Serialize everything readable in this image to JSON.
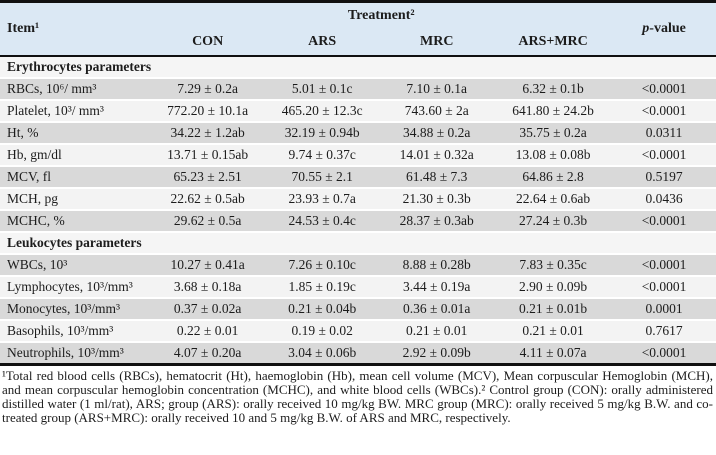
{
  "colors": {
    "header_bg": "#dbe8f4",
    "row_dark": "#d9d9d9",
    "row_light": "#f3f3f3",
    "section_bg": "#f5f5f5",
    "rule": "#101010"
  },
  "header": {
    "item": "Item¹",
    "treatment": "Treatment²",
    "treatments": [
      "CON",
      "ARS",
      "MRC",
      "ARS+MRC"
    ],
    "pvalue_italic": "p",
    "pvalue_rest": "-value"
  },
  "sections": [
    {
      "title": "Erythrocytes parameters",
      "rows": [
        {
          "label": "RBCs, 10⁶/ mm³",
          "values": [
            "7.29 ± 0.2a",
            "5.01 ± 0.1c",
            "7.10 ± 0.1a",
            "6.32 ± 0.1b"
          ],
          "p": "<0.0001"
        },
        {
          "label": "Platelet, 10³/ mm³",
          "values": [
            "772.20 ± 10.1a",
            "465.20 ± 12.3c",
            "743.60 ± 2a",
            "641.80 ± 24.2b"
          ],
          "p": "<0.0001"
        },
        {
          "label": "Ht, %",
          "values": [
            "34.22 ± 1.2ab",
            "32.19 ± 0.94b",
            "34.88 ± 0.2a",
            "35.75 ± 0.2a"
          ],
          "p": "0.0311"
        },
        {
          "label": "Hb, gm/dl",
          "values": [
            "13.71 ± 0.15ab",
            "9.74 ± 0.37c",
            "14.01 ± 0.32a",
            "13.08 ± 0.08b"
          ],
          "p": "<0.0001"
        },
        {
          "label": "MCV, fl",
          "values": [
            "65.23 ± 2.51",
            "70.55 ± 2.1",
            "61.48 ± 7.3",
            "64.86 ± 2.8"
          ],
          "p": "0.5197"
        },
        {
          "label": "MCH, pg",
          "values": [
            "22.62 ± 0.5ab",
            "23.93 ± 0.7a",
            "21.30 ± 0.3b",
            "22.64 ± 0.6ab"
          ],
          "p": "0.0436"
        },
        {
          "label": "MCHC, %",
          "values": [
            "29.62 ± 0.5a",
            "24.53 ± 0.4c",
            "28.37 ± 0.3ab",
            "27.24 ± 0.3b"
          ],
          "p": "<0.0001"
        }
      ]
    },
    {
      "title": "Leukocytes parameters",
      "rows": [
        {
          "label": "WBCs, 10³",
          "values": [
            "10.27 ± 0.41a",
            "7.26 ± 0.10c",
            "8.88 ± 0.28b",
            "7.83 ± 0.35c"
          ],
          "p": "<0.0001"
        },
        {
          "label": "Lymphocytes, 10³/mm³",
          "values": [
            "3.68 ± 0.18a",
            "1.85 ± 0.19c",
            "3.44 ± 0.19a",
            "2.90 ± 0.09b"
          ],
          "p": "<0.0001"
        },
        {
          "label": "Monocytes, 10³/mm³",
          "values": [
            "0.37 ± 0.02a",
            "0.21 ± 0.04b",
            "0.36 ± 0.01a",
            "0.21 ± 0.01b"
          ],
          "p": "0.0001"
        },
        {
          "label": "Basophils, 10³/mm³",
          "values": [
            "0.22 ± 0.01",
            "0.19 ± 0.02",
            "0.21 ± 0.01",
            "0.21 ± 0.01"
          ],
          "p": "0.7617"
        },
        {
          "label": "Neutrophils, 10³/mm³",
          "values": [
            "4.07 ± 0.20a",
            "3.04 ± 0.06b",
            "2.92 ± 0.09b",
            "4.11 ± 0.07a"
          ],
          "p": "<0.0001"
        }
      ]
    }
  ],
  "footnote": "¹Total red blood cells (RBCs), hematocrit (Ht), haemoglobin (Hb), mean cell volume (MCV), Mean corpuscular Hemoglobin (MCH), and mean corpuscular hemoglobin concentration (MCHC), and white blood cells (WBCs).² Control group (CON): orally administered distilled water (1 ml/rat), ARS; group (ARS): orally received 10 mg/kg BW. MRC group (MRC): orally received 5 mg/kg B.W. and co-treated group (ARS+MRC): orally received 10 and 5 mg/kg B.W. of ARS and MRC, respectively."
}
